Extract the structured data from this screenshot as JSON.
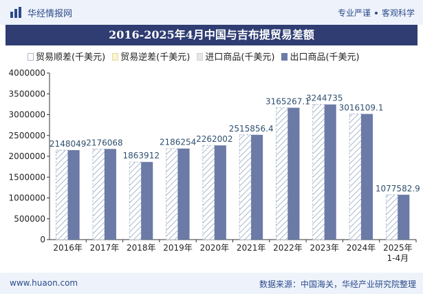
{
  "header": {
    "brand": "华经情报网",
    "right_a": "专业严谨",
    "right_b": "客观科学"
  },
  "footer": {
    "website": "www.huaon.com",
    "source": "数据来源：中国海关，华经产业研究院整理"
  },
  "colors": {
    "export_bar": "#6b7aa6",
    "hatch_stroke": "#a9b7c9",
    "title_bg": "#2f3d73",
    "label_text": "#2f4f6f"
  },
  "chart_data": {
    "type": "bar",
    "title": "2016-2025年4月中国与吉布提贸易差额",
    "categories": [
      "2016年",
      "2017年",
      "2018年",
      "2019年",
      "2020年",
      "2021年",
      "2022年",
      "2023年",
      "2024年",
      "2025年\n1-4月"
    ],
    "series": [
      {
        "name": "贸易顺差(千美元)",
        "values": [
          2148049,
          2176068,
          1863912,
          2186254,
          2262002,
          2515856.4,
          3165267.1,
          3244735,
          3016109.1,
          1077582.9
        ]
      },
      {
        "name": "贸易逆差(千美元)",
        "values": [
          null,
          null,
          null,
          null,
          null,
          null,
          null,
          null,
          null,
          null
        ]
      },
      {
        "name": "进口商品(千美元)",
        "values": [
          null,
          null,
          null,
          null,
          null,
          null,
          null,
          null,
          null,
          null
        ]
      },
      {
        "name": "出口商品(千美元)",
        "values": [
          2148049,
          2176068,
          1863912,
          2186254,
          2262002,
          2515856.4,
          3165267.1,
          3244735,
          3016109.1,
          1077582.9
        ]
      }
    ],
    "data_labels": [
      "2148049",
      "2176068",
      "1863912",
      "2186254",
      "2262002",
      "2515856.4",
      "3165267.1",
      "3244735",
      "3016109.1",
      "1077582.9"
    ],
    "yticks": [
      0,
      500000,
      1000000,
      1500000,
      2000000,
      2500000,
      3000000,
      3500000,
      4000000
    ],
    "ylim": [
      0,
      4000000
    ],
    "xlabel": "",
    "ylabel": "",
    "legend_position": "top",
    "grid": false
  }
}
